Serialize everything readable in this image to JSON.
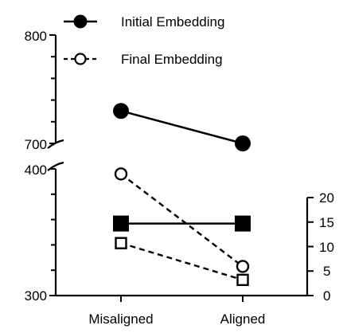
{
  "chart_data": {
    "type": "line",
    "categories": [
      "Misaligned",
      "Aligned"
    ],
    "left_axis_upper": {
      "ylim": [
        700,
        800
      ],
      "tick_labels": [
        "800",
        "700"
      ]
    },
    "left_axis_lower": {
      "ylim": [
        300,
        400
      ],
      "tick_labels": [
        "400",
        "300"
      ]
    },
    "right_axis": {
      "ylim": [
        0,
        20
      ],
      "tick_labels": [
        "20",
        "15",
        "10",
        "5",
        "0"
      ]
    },
    "series": [
      {
        "name": "Initial Embedding",
        "axis": "left_upper",
        "marker": "filled-circle",
        "line": "solid",
        "values": [
          730,
          700
        ]
      },
      {
        "name": "Final Embedding",
        "axis": "left_lower",
        "marker": "open-circle",
        "line": "dashed",
        "values": [
          396,
          323
        ]
      },
      {
        "axis": "right",
        "marker": "filled-square",
        "line": "solid",
        "values": [
          14.7,
          14.7
        ]
      },
      {
        "axis": "right",
        "marker": "open-square",
        "line": "dashed",
        "values": [
          10.7,
          3.2
        ]
      }
    ],
    "legend": {
      "placement": "top",
      "entries": [
        "Initial Embedding",
        "Final Embedding"
      ]
    },
    "grid": false
  }
}
